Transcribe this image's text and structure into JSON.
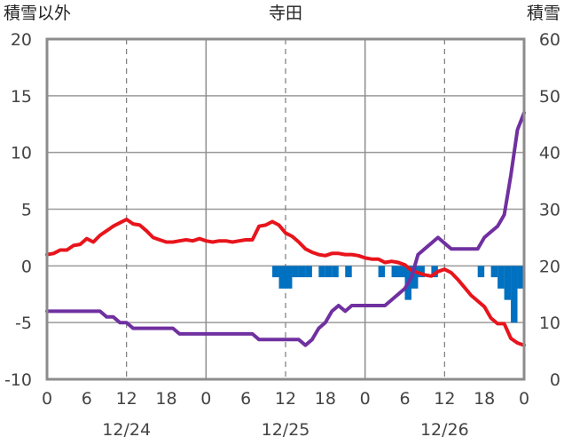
{
  "chart_data": {
    "type": "line",
    "title": "寺田",
    "left_axis_label": "積雪以外",
    "right_axis_label": "積雪",
    "ylim_left": [
      -10,
      20
    ],
    "yticks_left": [
      20,
      15,
      10,
      5,
      0,
      -5,
      -10
    ],
    "ylim_right": [
      0,
      60
    ],
    "yticks_right": [
      60,
      50,
      40,
      30,
      20,
      10,
      0
    ],
    "xlim_hours": [
      0,
      72
    ],
    "xtick_labels": [
      "0",
      "6",
      "12",
      "18",
      "0",
      "6",
      "12",
      "18",
      "0",
      "6",
      "12",
      "18",
      "0"
    ],
    "date_labels": [
      "12/24",
      "12/25",
      "12/26"
    ],
    "grid": true,
    "series": [
      {
        "color": "#e8141c",
        "axis": "left",
        "points": [
          [
            0,
            1.0
          ],
          [
            1,
            1.1
          ],
          [
            2,
            1.4
          ],
          [
            3,
            1.4
          ],
          [
            4,
            1.8
          ],
          [
            5,
            1.9
          ],
          [
            6,
            2.4
          ],
          [
            7,
            2.1
          ],
          [
            8,
            2.7
          ],
          [
            9,
            3.1
          ],
          [
            10,
            3.5
          ],
          [
            11,
            3.8
          ],
          [
            12,
            4.1
          ],
          [
            13,
            3.7
          ],
          [
            14,
            3.6
          ],
          [
            15,
            3.1
          ],
          [
            16,
            2.5
          ],
          [
            17,
            2.3
          ],
          [
            18,
            2.1
          ],
          [
            19,
            2.1
          ],
          [
            20,
            2.2
          ],
          [
            21,
            2.3
          ],
          [
            22,
            2.2
          ],
          [
            23,
            2.4
          ],
          [
            24,
            2.2
          ],
          [
            25,
            2.1
          ],
          [
            26,
            2.2
          ],
          [
            27,
            2.2
          ],
          [
            28,
            2.1
          ],
          [
            29,
            2.2
          ],
          [
            30,
            2.3
          ],
          [
            31,
            2.3
          ],
          [
            32,
            3.5
          ],
          [
            33,
            3.6
          ],
          [
            34,
            3.9
          ],
          [
            35,
            3.6
          ],
          [
            36,
            2.9
          ],
          [
            37,
            2.6
          ],
          [
            38,
            2.1
          ],
          [
            39,
            1.5
          ],
          [
            40,
            1.2
          ],
          [
            41,
            1.0
          ],
          [
            42,
            0.9
          ],
          [
            43,
            1.1
          ],
          [
            44,
            1.1
          ],
          [
            45,
            1.0
          ],
          [
            46,
            1.0
          ],
          [
            47,
            0.9
          ],
          [
            48,
            0.7
          ],
          [
            49,
            0.6
          ],
          [
            50,
            0.6
          ],
          [
            51,
            0.3
          ],
          [
            52,
            0.4
          ],
          [
            53,
            0.3
          ],
          [
            54,
            0.1
          ],
          [
            55,
            -0.4
          ],
          [
            56,
            -0.6
          ],
          [
            57,
            -0.8
          ],
          [
            58,
            -0.9
          ],
          [
            59,
            -0.5
          ],
          [
            60,
            -0.3
          ],
          [
            61,
            -0.6
          ],
          [
            62,
            -1.2
          ],
          [
            63,
            -1.9
          ],
          [
            64,
            -2.6
          ],
          [
            65,
            -3.1
          ],
          [
            66,
            -3.6
          ],
          [
            67,
            -4.6
          ],
          [
            68,
            -5.1
          ],
          [
            69,
            -5.1
          ],
          [
            70,
            -6.4
          ],
          [
            71,
            -6.8
          ],
          [
            72,
            -7.0
          ]
        ]
      },
      {
        "color": "#7030a0",
        "axis": "right",
        "points": [
          [
            0,
            12.0
          ],
          [
            1,
            12.0
          ],
          [
            2,
            12.0
          ],
          [
            3,
            12.0
          ],
          [
            4,
            12.0
          ],
          [
            5,
            12.0
          ],
          [
            6,
            12.0
          ],
          [
            7,
            12.0
          ],
          [
            8,
            12.0
          ],
          [
            9,
            11.0
          ],
          [
            10,
            11.0
          ],
          [
            11,
            10.0
          ],
          [
            12,
            10.0
          ],
          [
            13,
            9.0
          ],
          [
            14,
            9.0
          ],
          [
            15,
            9.0
          ],
          [
            16,
            9.0
          ],
          [
            17,
            9.0
          ],
          [
            18,
            9.0
          ],
          [
            19,
            9.0
          ],
          [
            20,
            8.0
          ],
          [
            21,
            8.0
          ],
          [
            22,
            8.0
          ],
          [
            23,
            8.0
          ],
          [
            24,
            8.0
          ],
          [
            25,
            8.0
          ],
          [
            26,
            8.0
          ],
          [
            27,
            8.0
          ],
          [
            28,
            8.0
          ],
          [
            29,
            8.0
          ],
          [
            30,
            8.0
          ],
          [
            31,
            8.0
          ],
          [
            32,
            7.0
          ],
          [
            33,
            7.0
          ],
          [
            34,
            7.0
          ],
          [
            35,
            7.0
          ],
          [
            36,
            7.0
          ],
          [
            37,
            7.0
          ],
          [
            38,
            7.0
          ],
          [
            39,
            6.0
          ],
          [
            40,
            7.0
          ],
          [
            41,
            9.0
          ],
          [
            42,
            10.0
          ],
          [
            43,
            12.0
          ],
          [
            44,
            13.0
          ],
          [
            45,
            12.0
          ],
          [
            46,
            13.0
          ],
          [
            47,
            13.0
          ],
          [
            48,
            13.0
          ],
          [
            49,
            13.0
          ],
          [
            50,
            13.0
          ],
          [
            51,
            13.0
          ],
          [
            52,
            14.0
          ],
          [
            53,
            15.0
          ],
          [
            54,
            16.0
          ],
          [
            55,
            18.0
          ],
          [
            56,
            22.0
          ],
          [
            57,
            23.0
          ],
          [
            58,
            24.0
          ],
          [
            59,
            25.0
          ],
          [
            60,
            24.0
          ],
          [
            61,
            23.0
          ],
          [
            62,
            23.0
          ],
          [
            63,
            23.0
          ],
          [
            64,
            23.0
          ],
          [
            65,
            23.0
          ],
          [
            66,
            25.0
          ],
          [
            67,
            26.0
          ],
          [
            68,
            27.0
          ],
          [
            69,
            29.0
          ],
          [
            70,
            36.0
          ],
          [
            71,
            44.0
          ],
          [
            72,
            47.0
          ]
        ]
      }
    ],
    "bars": {
      "color": "#0070c0",
      "axis": "left",
      "bins": [
        [
          35,
          -1
        ],
        [
          36,
          -2
        ],
        [
          37,
          -2
        ],
        [
          38,
          -1
        ],
        [
          39,
          -1
        ],
        [
          40,
          -1
        ],
        [
          42,
          -1
        ],
        [
          43,
          -1
        ],
        [
          44,
          -1
        ],
        [
          46,
          -1
        ],
        [
          51,
          -1
        ],
        [
          53,
          -1
        ],
        [
          54,
          -1
        ],
        [
          55,
          -3
        ],
        [
          56,
          -2
        ],
        [
          57,
          -1
        ],
        [
          59,
          -1
        ],
        [
          66,
          -1
        ],
        [
          68,
          -1
        ],
        [
          69,
          -2
        ],
        [
          70,
          -3
        ],
        [
          71,
          -5
        ],
        [
          72,
          -2
        ]
      ]
    }
  }
}
